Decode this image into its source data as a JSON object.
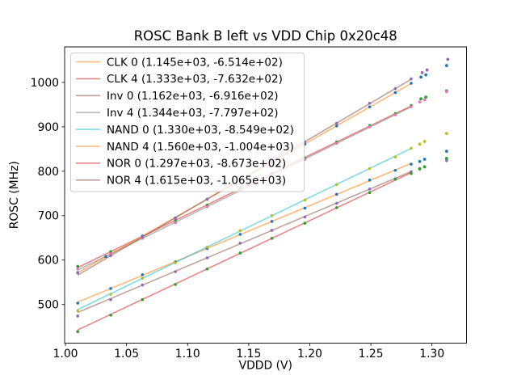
{
  "figure": {
    "title": "ROSC Bank B left vs VDD Chip 0x20c48"
  },
  "chart_data": {
    "type": "scatter",
    "title": "ROSC Bank B left vs VDD Chip 0x20c48",
    "xlabel": "VDDD (V)",
    "ylabel": "ROSC (MHz)",
    "xlim": [
      0.9993,
      1.3283
    ],
    "ylim": [
      413,
      1080
    ],
    "xticks": [
      1.0,
      1.05,
      1.1,
      1.15,
      1.2,
      1.25,
      1.3
    ],
    "xtick_labels": [
      "1.00",
      "1.05",
      "1.10",
      "1.15",
      "1.20",
      "1.25",
      "1.30"
    ],
    "yticks": [
      500,
      600,
      700,
      800,
      900,
      1000
    ],
    "ytick_labels": [
      "500",
      "600",
      "700",
      "800",
      "900",
      "1000"
    ],
    "grid": false,
    "legend_position": "upper left",
    "line_alpha": 0.55,
    "line_x_range": [
      1.01,
      1.283
    ],
    "series": [
      {
        "name": "CLK 0",
        "legend_label": "CLK 0 (1.145e+03, -6.514e+02)",
        "slope": 1145,
        "intercept": -651.4,
        "line_color": "#ff7f0e",
        "dot_color": "#1f77b4",
        "x": [
          1.01,
          1.037,
          1.063,
          1.09,
          1.116,
          1.143,
          1.169,
          1.196,
          1.222,
          1.249,
          1.27,
          1.283
        ],
        "y": [
          503,
          536,
          567,
          596,
          626,
          658,
          687,
          717,
          748,
          780,
          802,
          816
        ],
        "outliers": [
          [
            1.29,
            822
          ],
          [
            1.294,
            827
          ],
          [
            1.312,
            845
          ]
        ]
      },
      {
        "name": "CLK 4",
        "legend_label": "CLK 4 (1.333e+03, -7.632e+02)",
        "slope": 1333,
        "intercept": -763.2,
        "line_color": "#d62728",
        "dot_color": "#2ca02c",
        "x": [
          1.01,
          1.037,
          1.063,
          1.09,
          1.116,
          1.143,
          1.169,
          1.196,
          1.222,
          1.249,
          1.27,
          1.283
        ],
        "y": [
          586,
          619,
          654,
          689,
          724,
          761,
          795,
          830,
          866,
          903,
          930,
          948
        ],
        "outliers": [
          [
            1.291,
            963
          ],
          [
            1.295,
            967
          ],
          [
            1.312,
            981
          ]
        ]
      },
      {
        "name": "Inv 0",
        "legend_label": "Inv 0 (1.162e+03, -6.916e+02)",
        "slope": 1162,
        "intercept": -691.6,
        "line_color": "#8c564b",
        "dot_color": "#9467bd",
        "x": [
          1.01,
          1.037,
          1.063,
          1.09,
          1.116,
          1.143,
          1.169,
          1.196,
          1.222,
          1.249,
          1.27,
          1.283
        ],
        "y": [
          474,
          511,
          544,
          574,
          605,
          638,
          667,
          697,
          728,
          760,
          783,
          799
        ],
        "outliers": [
          [
            1.29,
            806
          ],
          [
            1.294,
            810
          ],
          [
            1.312,
            824
          ]
        ]
      },
      {
        "name": "Inv 4",
        "legend_label": "Inv 4 (1.344e+03, -7.797e+02)",
        "slope": 1344,
        "intercept": -779.7,
        "line_color": "#7f7f7f",
        "dot_color": "#e377c2",
        "x": [
          1.01,
          1.037,
          1.063,
          1.09,
          1.116,
          1.143,
          1.169,
          1.196,
          1.222,
          1.249,
          1.27,
          1.283
        ],
        "y": [
          580,
          614,
          649,
          684,
          720,
          757,
          791,
          827,
          863,
          900,
          927,
          945
        ],
        "outliers": [
          [
            1.29,
            956
          ],
          [
            1.294,
            961
          ],
          [
            1.312,
            979
          ]
        ]
      },
      {
        "name": "NAND 0",
        "legend_label": "NAND 0 (1.330e+03, -8.549e+02)",
        "slope": 1330,
        "intercept": -854.9,
        "line_color": "#17becf",
        "dot_color": "#bcbd22",
        "x": [
          1.01,
          1.037,
          1.063,
          1.09,
          1.116,
          1.143,
          1.169,
          1.196,
          1.222,
          1.249,
          1.27,
          1.283
        ],
        "y": [
          486,
          523,
          559,
          594,
          629,
          666,
          700,
          735,
          770,
          806,
          832,
          852
        ],
        "outliers": [
          [
            1.29,
            861
          ],
          [
            1.294,
            867
          ],
          [
            1.312,
            885
          ]
        ]
      },
      {
        "name": "NAND 4",
        "legend_label": "NAND 4 (1.560e+03, -1.004e+03)",
        "slope": 1560,
        "intercept": -1004,
        "line_color": "#ff7f0e",
        "dot_color": "#1f77b4",
        "x": [
          1.01,
          1.033,
          1.063,
          1.09,
          1.116,
          1.143,
          1.169,
          1.196,
          1.222,
          1.249,
          1.27,
          1.283
        ],
        "y": [
          572,
          608,
          654,
          695,
          737,
          780,
          820,
          861,
          902,
          945,
          977,
          998
        ],
        "outliers": [
          [
            1.291,
            1012
          ],
          [
            1.295,
            1017
          ],
          [
            1.312,
            1038
          ]
        ]
      },
      {
        "name": "NOR 0",
        "legend_label": "NOR 0 (1.297e+03, -8.673e+02)",
        "slope": 1297,
        "intercept": -867.3,
        "line_color": "#d62728",
        "dot_color": "#2ca02c",
        "x": [
          1.01,
          1.037,
          1.063,
          1.09,
          1.116,
          1.143,
          1.169,
          1.196,
          1.222,
          1.249,
          1.27,
          1.283
        ],
        "y": [
          439,
          476,
          511,
          545,
          580,
          616,
          649,
          683,
          718,
          752,
          782,
          795
        ],
        "outliers": [
          [
            1.29,
            805
          ],
          [
            1.294,
            810
          ],
          [
            1.312,
            829
          ]
        ]
      },
      {
        "name": "NOR 4",
        "legend_label": "NOR 4 (1.615e+03, -1.065e+03)",
        "slope": 1615,
        "intercept": -1065,
        "line_color": "#8c564b",
        "dot_color": "#9467bd",
        "x": [
          1.01,
          1.037,
          1.063,
          1.09,
          1.116,
          1.143,
          1.169,
          1.196,
          1.222,
          1.249,
          1.27,
          1.283
        ],
        "y": [
          571,
          610,
          652,
          694,
          737,
          782,
          823,
          866,
          908,
          953,
          986,
          1008
        ],
        "outliers": [
          [
            1.292,
            1022
          ],
          [
            1.296,
            1028
          ],
          [
            1.313,
            1052
          ]
        ]
      }
    ]
  }
}
